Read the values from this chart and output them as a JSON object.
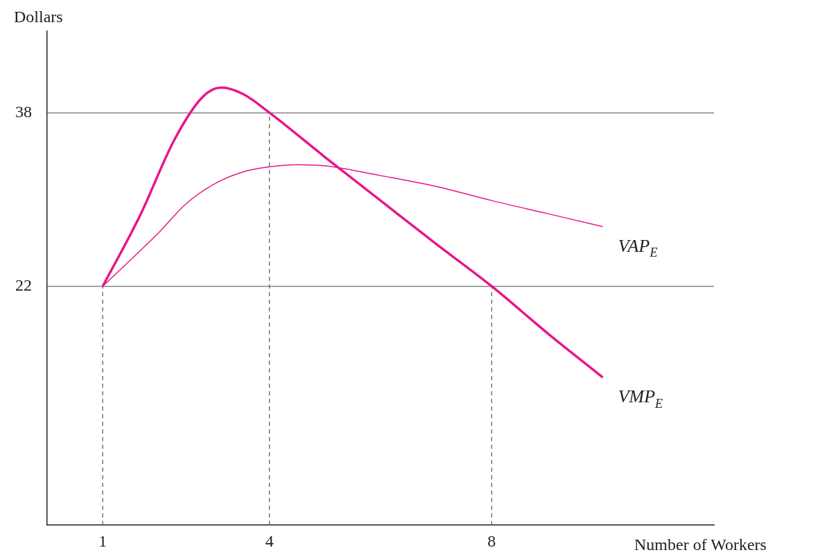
{
  "chart_data": {
    "type": "line",
    "xlabel": "Number of Workers",
    "ylabel": "Dollars",
    "xlim": [
      0,
      12
    ],
    "xticks": [
      1,
      4,
      8
    ],
    "ylim": [
      0,
      45.5
    ],
    "yticks": [
      22,
      38
    ],
    "grid": "y",
    "legend": false,
    "marker": "none",
    "series": [
      {
        "name": "VAP$_{E}$",
        "color": "#e8168a",
        "x": [
          1,
          2,
          2.5,
          3,
          3.5,
          4,
          4.5,
          5,
          6,
          7,
          8,
          9,
          10
        ],
        "values": [
          22,
          26.9,
          29.6,
          31.4,
          32.5,
          33,
          33.2,
          33.1,
          32.2,
          31.2,
          29.9,
          28.7,
          27.5
        ]
      },
      {
        "name": "VMP$_{E}$",
        "color": "#e8168a",
        "x": [
          1,
          1.67,
          2.29,
          2.79,
          3.13,
          3.53,
          4,
          5,
          6,
          7,
          8,
          9,
          10
        ],
        "values": [
          22,
          28.5,
          35.5,
          39.4,
          40.3,
          39.7,
          38,
          33.9,
          29.9,
          25.9,
          22,
          17.7,
          13.6
        ]
      }
    ],
    "ref_lines": [
      {
        "axis": "x",
        "value": 1,
        "line_style": "dashed",
        "color": "#555555"
      },
      {
        "axis": "x",
        "value": 4,
        "line_style": "dashed",
        "color": "#555555"
      },
      {
        "axis": "x",
        "value": 8,
        "line_style": "dashed",
        "color": "#555555"
      }
    ]
  }
}
